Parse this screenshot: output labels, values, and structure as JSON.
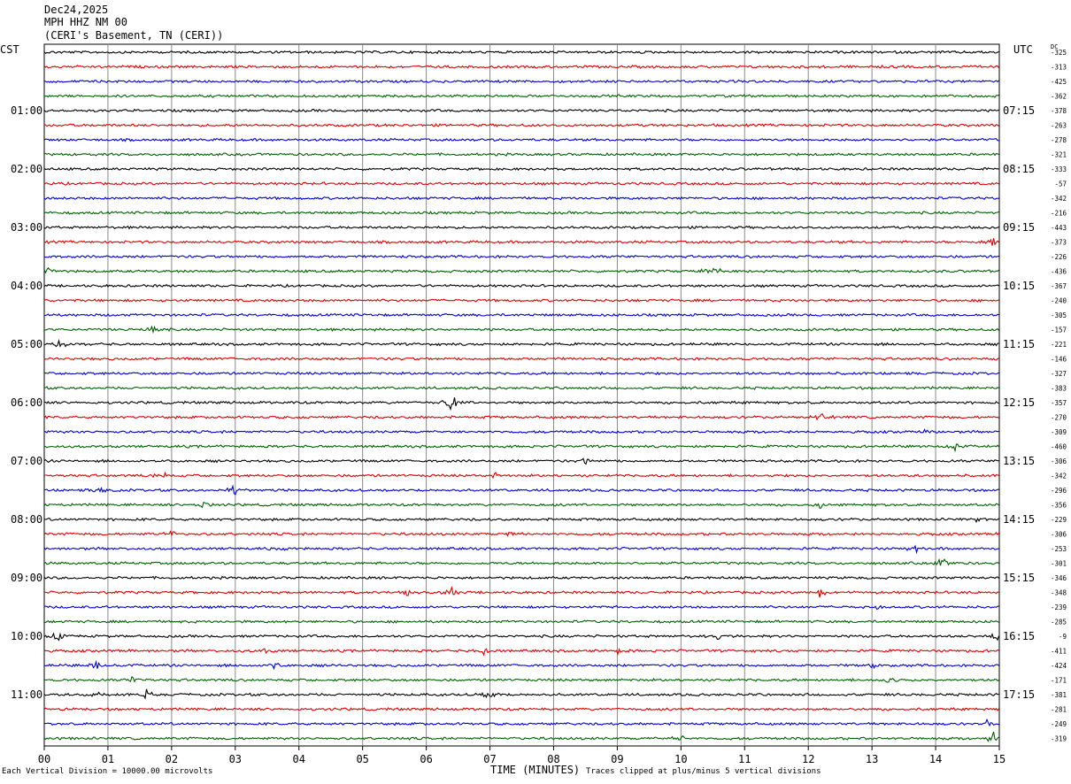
{
  "header": {
    "date": "Dec24,2025",
    "station": "MPH HHZ NM 00",
    "location": "(CERI's Basement, TN (CERI))"
  },
  "left_timezone": "CST",
  "right_timezone": "UTC",
  "dc_label": "DC",
  "footer": {
    "scale_note": "Each Vertical Division = 10000.00 microvolts",
    "clip_note": "Traces clipped at plus/minus 5 vertical divisions"
  },
  "colors": {
    "trace_cycle": [
      "#000000",
      "#e00000",
      "#0000d0",
      "#006000"
    ],
    "grid": "#888888"
  },
  "chart_data": {
    "type": "line",
    "title": "",
    "xlabel": "TIME (MINUTES)",
    "x_ticks": [
      "00",
      "01",
      "02",
      "03",
      "04",
      "05",
      "06",
      "07",
      "08",
      "09",
      "10",
      "11",
      "12",
      "13",
      "14",
      "15"
    ],
    "xlim": [
      0,
      15
    ],
    "traces_per_hour": 4,
    "left_hour_labels": [
      "01:00",
      "02:00",
      "03:00",
      "04:00",
      "05:00",
      "06:00",
      "07:00",
      "08:00",
      "09:00",
      "10:00",
      "11:00"
    ],
    "right_hour_labels": [
      "07:15",
      "08:15",
      "09:15",
      "10:15",
      "11:15",
      "12:15",
      "13:15",
      "14:15",
      "15:15",
      "16:15",
      "17:15"
    ],
    "dc_offsets": [
      -325,
      -313,
      -425,
      -362,
      -378,
      -263,
      -278,
      -321,
      -333,
      -57,
      -342,
      -216,
      -443,
      -373,
      -226,
      -436,
      -367,
      -240,
      -305,
      -157,
      -221,
      -146,
      -327,
      -383,
      -357,
      -270,
      -309,
      -460,
      -306,
      -342,
      -296,
      -356,
      -229,
      -306,
      -253,
      -301,
      -346,
      -348,
      -239,
      -285,
      -9,
      -411,
      -424,
      -171,
      -381,
      -281,
      -249,
      -319
    ],
    "events": [
      {
        "trace": 13,
        "minute": 14.9,
        "amp": 7
      },
      {
        "trace": 15,
        "minute": 0.05,
        "amp": 5
      },
      {
        "trace": 15,
        "minute": 10.5,
        "amp": 10
      },
      {
        "trace": 19,
        "minute": 1.7,
        "amp": 4
      },
      {
        "trace": 20,
        "minute": 0.25,
        "amp": 6
      },
      {
        "trace": 23,
        "minute": 4.5,
        "amp": 3
      },
      {
        "trace": 24,
        "minute": 6.4,
        "amp": 9
      },
      {
        "trace": 25,
        "minute": 12.2,
        "amp": 8
      },
      {
        "trace": 26,
        "minute": 13.8,
        "amp": 4
      },
      {
        "trace": 27,
        "minute": 14.3,
        "amp": 7
      },
      {
        "trace": 28,
        "minute": 8.5,
        "amp": 4
      },
      {
        "trace": 29,
        "minute": 1.9,
        "amp": 4
      },
      {
        "trace": 29,
        "minute": 7.1,
        "amp": 4
      },
      {
        "trace": 30,
        "minute": 3.0,
        "amp": 9
      },
      {
        "trace": 30,
        "minute": 0.9,
        "amp": 4
      },
      {
        "trace": 31,
        "minute": 2.5,
        "amp": 4
      },
      {
        "trace": 31,
        "minute": 12.2,
        "amp": 4
      },
      {
        "trace": 32,
        "minute": 14.7,
        "amp": 4
      },
      {
        "trace": 33,
        "minute": 2.0,
        "amp": 4
      },
      {
        "trace": 33,
        "minute": 7.3,
        "amp": 3
      },
      {
        "trace": 34,
        "minute": 13.7,
        "amp": 6
      },
      {
        "trace": 34,
        "minute": 3.8,
        "amp": 3
      },
      {
        "trace": 35,
        "minute": 14.1,
        "amp": 7
      },
      {
        "trace": 37,
        "minute": 12.2,
        "amp": 8
      },
      {
        "trace": 37,
        "minute": 6.4,
        "amp": 6
      },
      {
        "trace": 37,
        "minute": 5.7,
        "amp": 5
      },
      {
        "trace": 38,
        "minute": 9.0,
        "amp": 3
      },
      {
        "trace": 38,
        "minute": 13.1,
        "amp": 3
      },
      {
        "trace": 40,
        "minute": 0.2,
        "amp": 7
      },
      {
        "trace": 40,
        "minute": 10.6,
        "amp": 4
      },
      {
        "trace": 40,
        "minute": 14.95,
        "amp": 8
      },
      {
        "trace": 41,
        "minute": 6.9,
        "amp": 5
      },
      {
        "trace": 41,
        "minute": 9.0,
        "amp": 5
      },
      {
        "trace": 41,
        "minute": 3.5,
        "amp": 3
      },
      {
        "trace": 42,
        "minute": 0.8,
        "amp": 6
      },
      {
        "trace": 42,
        "minute": 3.6,
        "amp": 4
      },
      {
        "trace": 42,
        "minute": 13.0,
        "amp": 4
      },
      {
        "trace": 43,
        "minute": 1.4,
        "amp": 5
      },
      {
        "trace": 43,
        "minute": 13.3,
        "amp": 4
      },
      {
        "trace": 44,
        "minute": 1.6,
        "amp": 6
      },
      {
        "trace": 44,
        "minute": 7.0,
        "amp": 5
      },
      {
        "trace": 44,
        "minute": 0.8,
        "amp": 4
      },
      {
        "trace": 46,
        "minute": 14.8,
        "amp": 5
      },
      {
        "trace": 47,
        "minute": 14.9,
        "amp": 8
      },
      {
        "trace": 47,
        "minute": 10.0,
        "amp": 3
      }
    ]
  }
}
